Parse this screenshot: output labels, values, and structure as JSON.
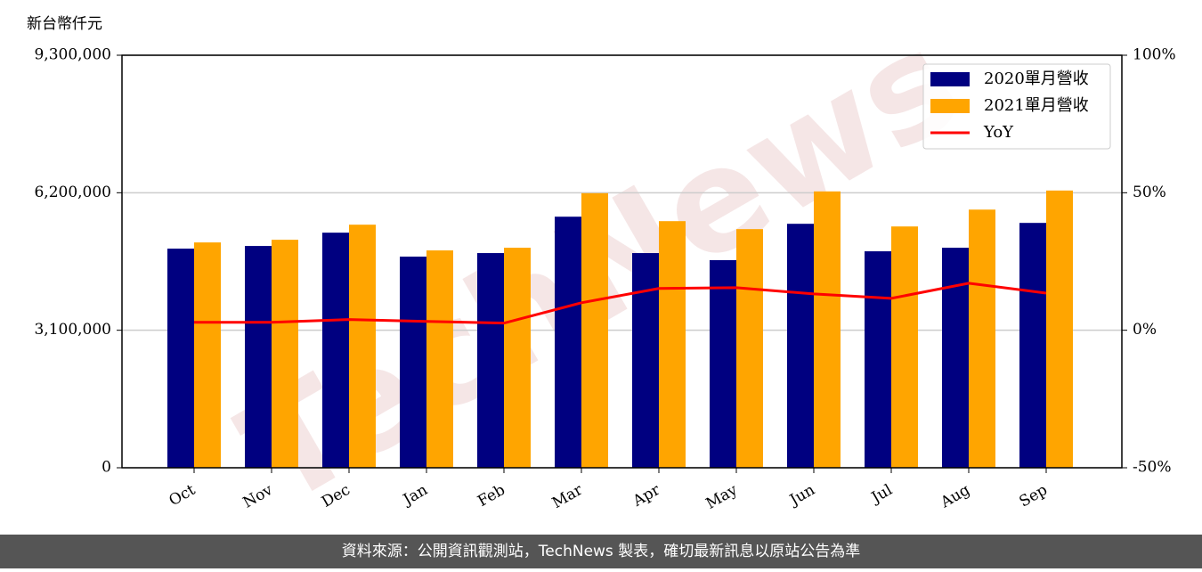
{
  "chart_data": {
    "type": "bar",
    "y_label": "新台幣仟元",
    "watermark": "TechNews",
    "categories": [
      "Oct",
      "Nov",
      "Dec",
      "Jan",
      "Feb",
      "Mar",
      "Apr",
      "May",
      "Jun",
      "Jul",
      "Aug",
      "Sep"
    ],
    "series": [
      {
        "name": "2020單月營收",
        "color": "#000080",
        "values": [
          4940000,
          5000000,
          5300000,
          4760000,
          4840000,
          5660000,
          4840000,
          4680000,
          5500000,
          4880000,
          4960000,
          5520000
        ]
      },
      {
        "name": "2021單月營收",
        "color": "#ffa500",
        "values": [
          5080000,
          5140000,
          5480000,
          4900000,
          4960000,
          6190000,
          5560000,
          5380000,
          6230000,
          5440000,
          5820000,
          6250000
        ]
      },
      {
        "name": "YoY",
        "type": "line",
        "axis": "y2",
        "color": "#ff0000",
        "values": [
          2.9,
          2.9,
          3.9,
          3.2,
          2.6,
          10,
          15.2,
          15.5,
          13.2,
          11.6,
          17.1,
          13.5
        ]
      }
    ],
    "ylim": [
      0,
      9300000
    ],
    "yticks": [
      0,
      {
        "value": 3100000,
        "label": "3,100,000"
      },
      {
        "value": 6200000,
        "label": "6,200,000"
      },
      {
        "value": 9300000,
        "label": "9,300,000"
      }
    ],
    "y2lim": [
      -50,
      100
    ],
    "y2ticks": [
      {
        "value": -50,
        "label": "-50%"
      },
      {
        "value": 0,
        "label": "0%"
      },
      {
        "value": 50,
        "label": "50%"
      },
      {
        "value": 100,
        "label": "100%"
      }
    ],
    "grid": true,
    "legend": "upper right",
    "footer": "資料來源：公開資訊觀測站，TechNews 製表，確切最新訊息以原站公告為準"
  }
}
